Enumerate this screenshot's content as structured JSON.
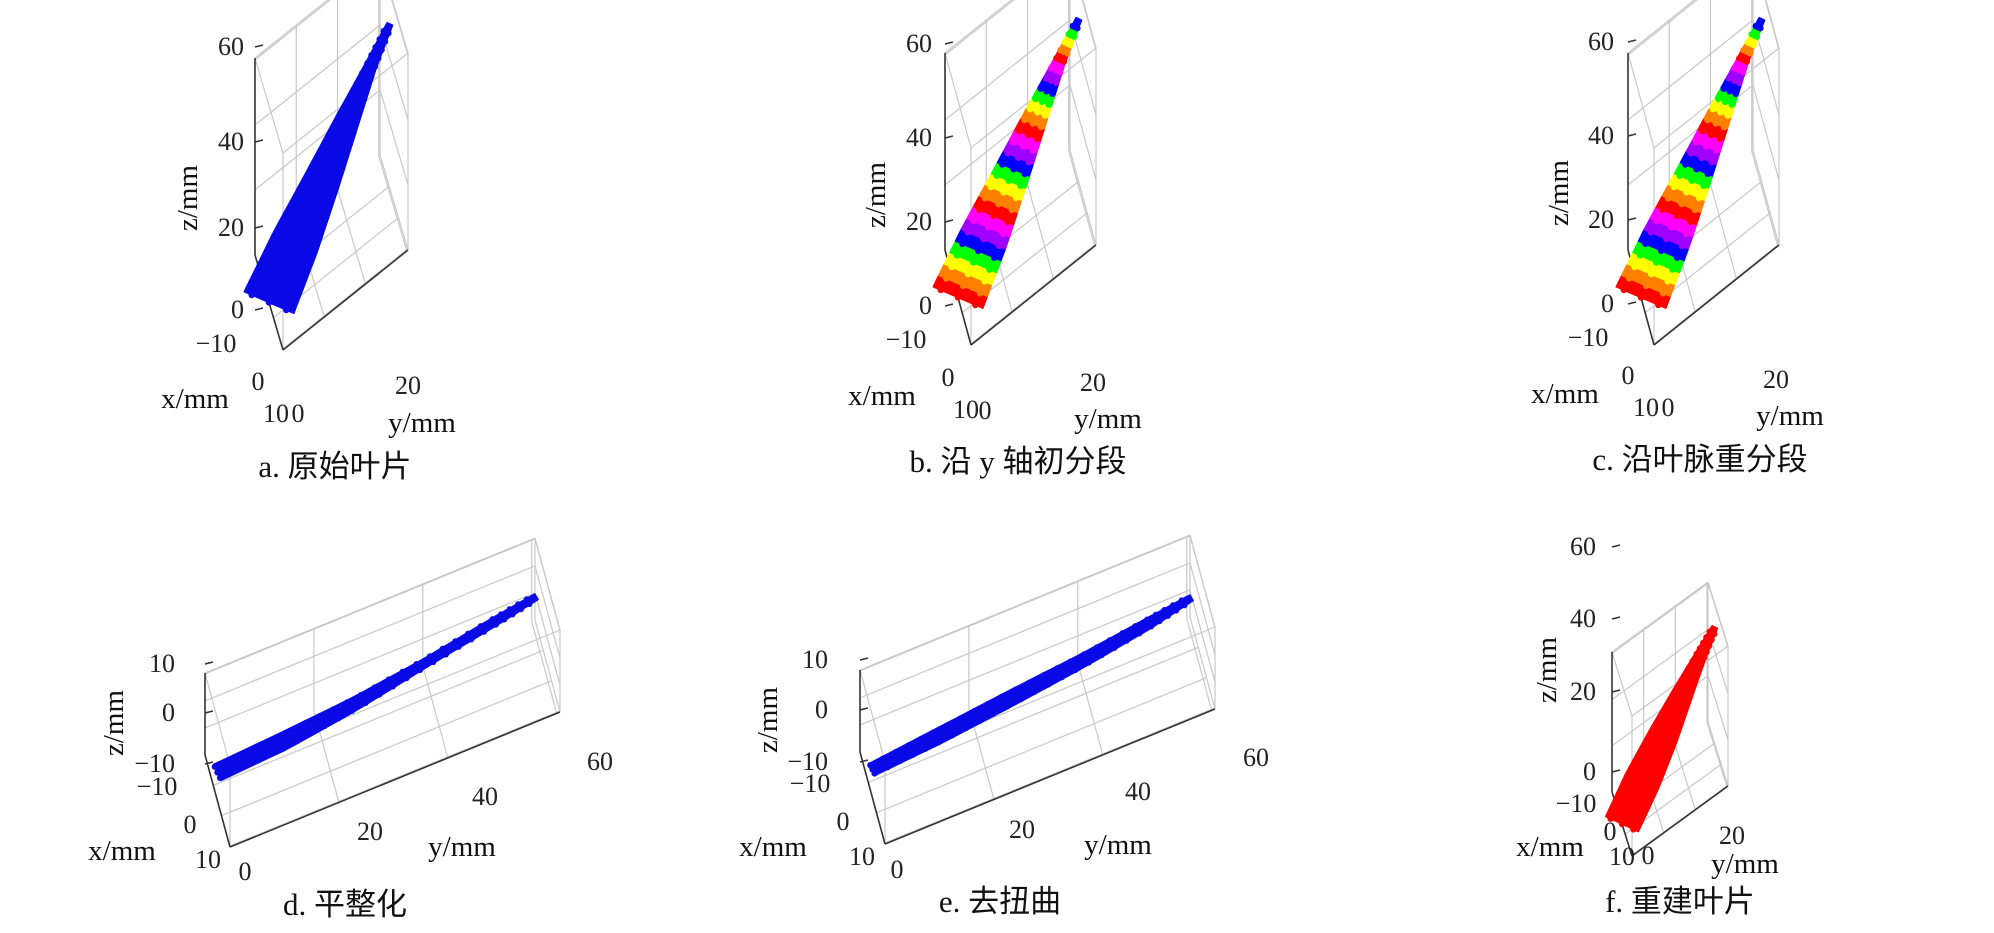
{
  "chart_data": [
    {
      "type": "scatter",
      "panel": "a",
      "caption": "a. 原始叶片",
      "color_mode": "single",
      "color": "#0a0ae6",
      "xlabel": "x/mm",
      "ylabel": "y/mm",
      "zlabel": "z/mm",
      "xlim": [
        -10,
        10
      ],
      "ylim": [
        0,
        30
      ],
      "zlim": [
        -5,
        60
      ],
      "xticks": [
        "−10",
        "0",
        "10"
      ],
      "yticks": [
        "0",
        "20"
      ],
      "zticks": [
        "0",
        "20",
        "40",
        "60"
      ],
      "grid": true,
      "series": [
        {
          "spine": [
            [
              0,
              0,
              -5
            ],
            [
              1,
              6,
              10
            ],
            [
              2,
              12,
              25
            ],
            [
              2,
              18,
              38
            ],
            [
              1,
              24,
              48
            ],
            [
              0,
              29,
              55
            ]
          ],
          "width": [
            9,
            8,
            6,
            4,
            2,
            1
          ]
        }
      ]
    },
    {
      "type": "scatter",
      "panel": "b",
      "caption": "b. 沿 y 轴初分段",
      "color_mode": "segments",
      "segment_colors": [
        "#ff0000",
        "#ff8000",
        "#ffff00",
        "#00ff00",
        "#0000ff",
        "#a000ff",
        "#ff00ff"
      ],
      "xlabel": "x/mm",
      "ylabel": "y/mm",
      "zlabel": "z/mm",
      "xlim": [
        -10,
        10
      ],
      "ylim": [
        0,
        30
      ],
      "zlim": [
        -5,
        60
      ],
      "xticks": [
        "−10",
        "0",
        "10"
      ],
      "yticks": [
        "0",
        "20"
      ],
      "zticks": [
        "0",
        "20",
        "40",
        "60"
      ],
      "grid": true,
      "series": [
        {
          "spine": [
            [
              0,
              0,
              -5
            ],
            [
              1,
              6,
              10
            ],
            [
              2,
              12,
              25
            ],
            [
              2,
              18,
              38
            ],
            [
              1,
              24,
              48
            ],
            [
              0,
              29,
              55
            ]
          ],
          "width": [
            9,
            8,
            6,
            4,
            2,
            1
          ]
        }
      ]
    },
    {
      "type": "scatter",
      "panel": "c",
      "caption": "c. 沿叶脉重分段",
      "color_mode": "segments",
      "segment_colors": [
        "#ff0000",
        "#ff8000",
        "#ffff00",
        "#00ff00",
        "#0000ff",
        "#a000ff",
        "#ff00ff"
      ],
      "xlabel": "x/mm",
      "ylabel": "y/mm",
      "zlabel": "z/mm",
      "xlim": [
        -10,
        10
      ],
      "ylim": [
        0,
        30
      ],
      "zlim": [
        -5,
        60
      ],
      "xticks": [
        "−10",
        "0",
        "10"
      ],
      "yticks": [
        "0",
        "20"
      ],
      "zticks": [
        "0",
        "20",
        "40",
        "60"
      ],
      "grid": true,
      "series": [
        {
          "spine": [
            [
              0,
              0,
              -5
            ],
            [
              1,
              6,
              10
            ],
            [
              2,
              12,
              25
            ],
            [
              2,
              18,
              38
            ],
            [
              1,
              24,
              48
            ],
            [
              0,
              29,
              55
            ]
          ],
          "width": [
            9,
            8,
            6,
            4,
            2,
            1
          ]
        }
      ]
    },
    {
      "type": "scatter",
      "panel": "d",
      "caption": "d. 平整化",
      "color_mode": "single",
      "color": "#0a0ae6",
      "xlabel": "x/mm",
      "ylabel": "y/mm",
      "zlabel": "z/mm",
      "xlim": [
        -10,
        10
      ],
      "ylim": [
        0,
        60
      ],
      "zlim": [
        -10,
        10
      ],
      "xticks": [
        "−10",
        "0",
        "10"
      ],
      "yticks": [
        "20",
        "40",
        "60"
      ],
      "yticks_zero": "0",
      "zticks": [
        "−10",
        "0",
        "10"
      ],
      "grid": true,
      "series": [
        {
          "spine": [
            [
              0,
              0,
              -3
            ],
            [
              0,
              12,
              -2
            ],
            [
              0,
              25,
              0
            ],
            [
              0,
              38,
              3
            ],
            [
              0,
              50,
              6
            ],
            [
              0,
              58,
              8
            ]
          ],
          "width": [
            4,
            4,
            3,
            2,
            2,
            1.5
          ]
        }
      ]
    },
    {
      "type": "scatter",
      "panel": "e",
      "caption": "e. 去扭曲",
      "color_mode": "single",
      "color": "#0a0ae6",
      "xlabel": "x/mm",
      "ylabel": "y/mm",
      "zlabel": "z/mm",
      "xlim": [
        -10,
        10
      ],
      "ylim": [
        0,
        60
      ],
      "zlim": [
        -10,
        10
      ],
      "xticks": [
        "−10",
        "0",
        "10"
      ],
      "yticks": [
        "20",
        "40",
        "60"
      ],
      "yticks_zero": "0",
      "zticks": [
        "−10",
        "0",
        "10"
      ],
      "grid": true,
      "series": [
        {
          "spine": [
            [
              0,
              0,
              -3
            ],
            [
              0,
              12,
              -1.5
            ],
            [
              0,
              25,
              0.5
            ],
            [
              0,
              38,
              2.5
            ],
            [
              0,
              50,
              5
            ],
            [
              0,
              58,
              7
            ]
          ],
          "width": [
            3,
            3.5,
            3.5,
            3,
            2.5,
            1.5
          ]
        }
      ]
    },
    {
      "type": "scatter",
      "panel": "f",
      "caption": "f. 重建叶片",
      "color_mode": "single",
      "color": "#ff0000",
      "xlabel": "x/mm",
      "ylabel": "y/mm",
      "zlabel": "z/mm",
      "xlim": [
        -10,
        10
      ],
      "ylim": [
        0,
        30
      ],
      "zlim": [
        -5,
        60
      ],
      "xticks": [
        "−10",
        "0",
        "10"
      ],
      "yticks": [
        "0",
        "20"
      ],
      "zticks": [
        "0",
        "20",
        "40",
        "60"
      ],
      "grid": true,
      "series": [
        {
          "spine": [
            [
              0,
              0,
              -5
            ],
            [
              1,
              6,
              10
            ],
            [
              2,
              12,
              25
            ],
            [
              2,
              18,
              38
            ],
            [
              1,
              24,
              48
            ],
            [
              0,
              29,
              55
            ]
          ],
          "width": [
            6,
            6,
            5,
            3.5,
            2,
            1
          ]
        }
      ]
    }
  ]
}
